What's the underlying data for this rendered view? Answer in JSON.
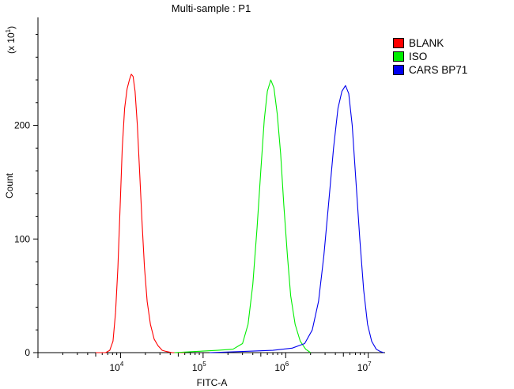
{
  "chart_data": {
    "type": "line",
    "title": "Multi-sample : P1",
    "xlabel": "FITC-A",
    "ylabel": "Count",
    "y_multiplier_label": "(x 10",
    "y_multiplier_exp": "1",
    "xscale": "log",
    "xlim": [
      1000,
      16000000
    ],
    "ylim": [
      0,
      295
    ],
    "x_ticks": [
      {
        "base": "10",
        "exp": "4",
        "value": 10000
      },
      {
        "base": "10",
        "exp": "5",
        "value": 100000
      },
      {
        "base": "10",
        "exp": "6",
        "value": 1000000
      },
      {
        "base": "10",
        "exp": "7",
        "value": 10000000
      }
    ],
    "y_ticks": [
      {
        "label": "0",
        "value": 0
      },
      {
        "label": "100",
        "value": 100
      },
      {
        "label": "200",
        "value": 200
      }
    ],
    "legend_position": "top-right",
    "grid": false,
    "series": [
      {
        "name": "BLANK",
        "color": "#ff0000",
        "points": [
          [
            5000,
            0
          ],
          [
            6600,
            0
          ],
          [
            7400,
            2
          ],
          [
            8100,
            10
          ],
          [
            8700,
            35
          ],
          [
            9300,
            75
          ],
          [
            9900,
            130
          ],
          [
            10500,
            180
          ],
          [
            11200,
            215
          ],
          [
            12000,
            232
          ],
          [
            12800,
            240
          ],
          [
            13500,
            245
          ],
          [
            14200,
            243
          ],
          [
            15000,
            230
          ],
          [
            16000,
            200
          ],
          [
            17000,
            160
          ],
          [
            18200,
            115
          ],
          [
            19500,
            75
          ],
          [
            21000,
            45
          ],
          [
            23000,
            25
          ],
          [
            25500,
            12
          ],
          [
            28500,
            6
          ],
          [
            32000,
            2
          ],
          [
            36000,
            1
          ],
          [
            42000,
            0
          ],
          [
            60000,
            0
          ]
        ]
      },
      {
        "name": "ISO",
        "color": "#00ee00",
        "points": [
          [
            45000,
            0
          ],
          [
            80000,
            1
          ],
          [
            150000,
            2
          ],
          [
            230000,
            3
          ],
          [
            300000,
            8
          ],
          [
            350000,
            25
          ],
          [
            400000,
            60
          ],
          [
            450000,
            110
          ],
          [
            500000,
            160
          ],
          [
            550000,
            205
          ],
          [
            600000,
            230
          ],
          [
            660000,
            240
          ],
          [
            720000,
            233
          ],
          [
            790000,
            210
          ],
          [
            870000,
            175
          ],
          [
            950000,
            130
          ],
          [
            1050000,
            85
          ],
          [
            1150000,
            50
          ],
          [
            1300000,
            25
          ],
          [
            1500000,
            10
          ],
          [
            1750000,
            3
          ],
          [
            2000000,
            0
          ]
        ]
      },
      {
        "name": "CARS BP71",
        "color": "#0000ee",
        "points": [
          [
            120000,
            0
          ],
          [
            300000,
            1
          ],
          [
            700000,
            2
          ],
          [
            1200000,
            4
          ],
          [
            1700000,
            8
          ],
          [
            2100000,
            20
          ],
          [
            2500000,
            45
          ],
          [
            2900000,
            85
          ],
          [
            3300000,
            130
          ],
          [
            3800000,
            180
          ],
          [
            4300000,
            215
          ],
          [
            4800000,
            230
          ],
          [
            5300000,
            235
          ],
          [
            5800000,
            228
          ],
          [
            6400000,
            200
          ],
          [
            7100000,
            150
          ],
          [
            7900000,
            100
          ],
          [
            8800000,
            55
          ],
          [
            9800000,
            25
          ],
          [
            11000000,
            10
          ],
          [
            12500000,
            3
          ],
          [
            14000000,
            1
          ],
          [
            15500000,
            0
          ]
        ]
      }
    ]
  }
}
